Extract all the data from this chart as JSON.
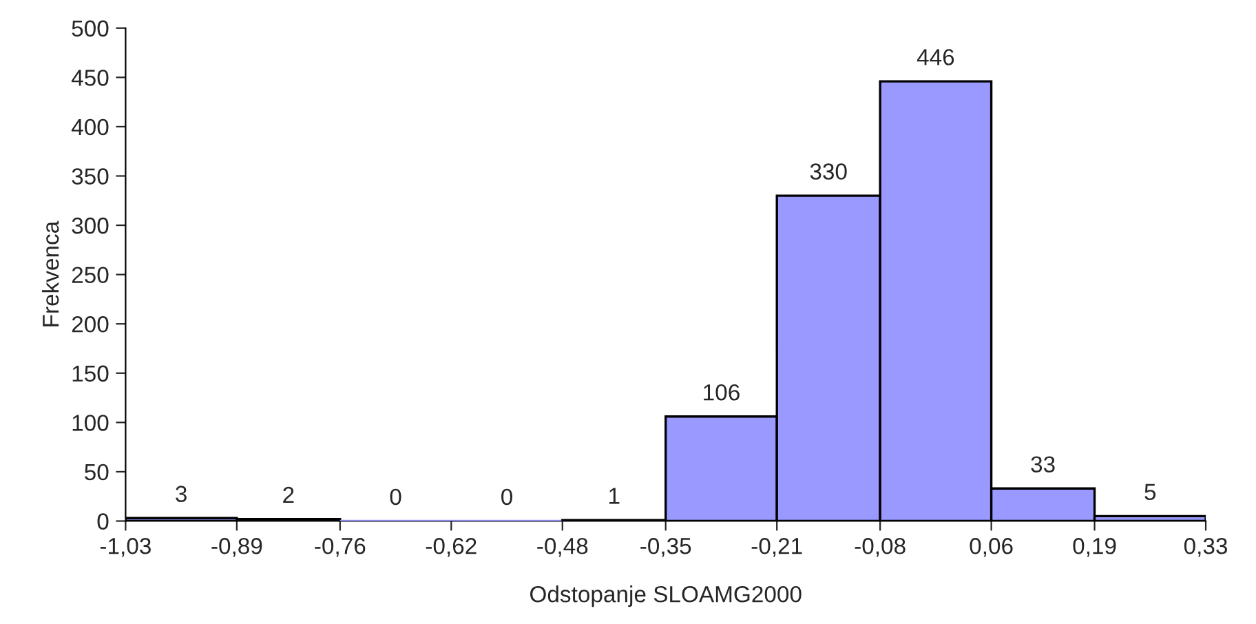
{
  "chart_data": {
    "type": "histogram",
    "xlabel": "Odstopanje SLOAMG2000",
    "ylabel": "Frekvenca",
    "bins": [
      -1.03,
      -0.89,
      -0.76,
      -0.62,
      -0.48,
      -0.35,
      -0.21,
      -0.08,
      0.06,
      0.19,
      0.33
    ],
    "values": [
      3,
      2,
      0,
      0,
      1,
      106,
      330,
      446,
      33,
      5
    ],
    "color": "#9999ff",
    "data_labels": true,
    "grid": false,
    "xlim": [
      -1.03,
      0.33
    ],
    "xticks": [
      {
        "value": -1.03,
        "label": "-1,03"
      },
      {
        "value": -0.89,
        "label": "-0,89"
      },
      {
        "value": -0.76,
        "label": "-0,76"
      },
      {
        "value": -0.62,
        "label": "-0,62"
      },
      {
        "value": -0.48,
        "label": "-0,48"
      },
      {
        "value": -0.35,
        "label": "-0,35"
      },
      {
        "value": -0.21,
        "label": "-0,21"
      },
      {
        "value": -0.08,
        "label": "-0,08"
      },
      {
        "value": 0.06,
        "label": "0,06"
      },
      {
        "value": 0.19,
        "label": "0,19"
      },
      {
        "value": 0.33,
        "label": "0,33"
      }
    ],
    "ylim": [
      0,
      500
    ],
    "yticks": [
      0,
      50,
      100,
      150,
      200,
      250,
      300,
      350,
      400,
      450,
      500
    ]
  }
}
